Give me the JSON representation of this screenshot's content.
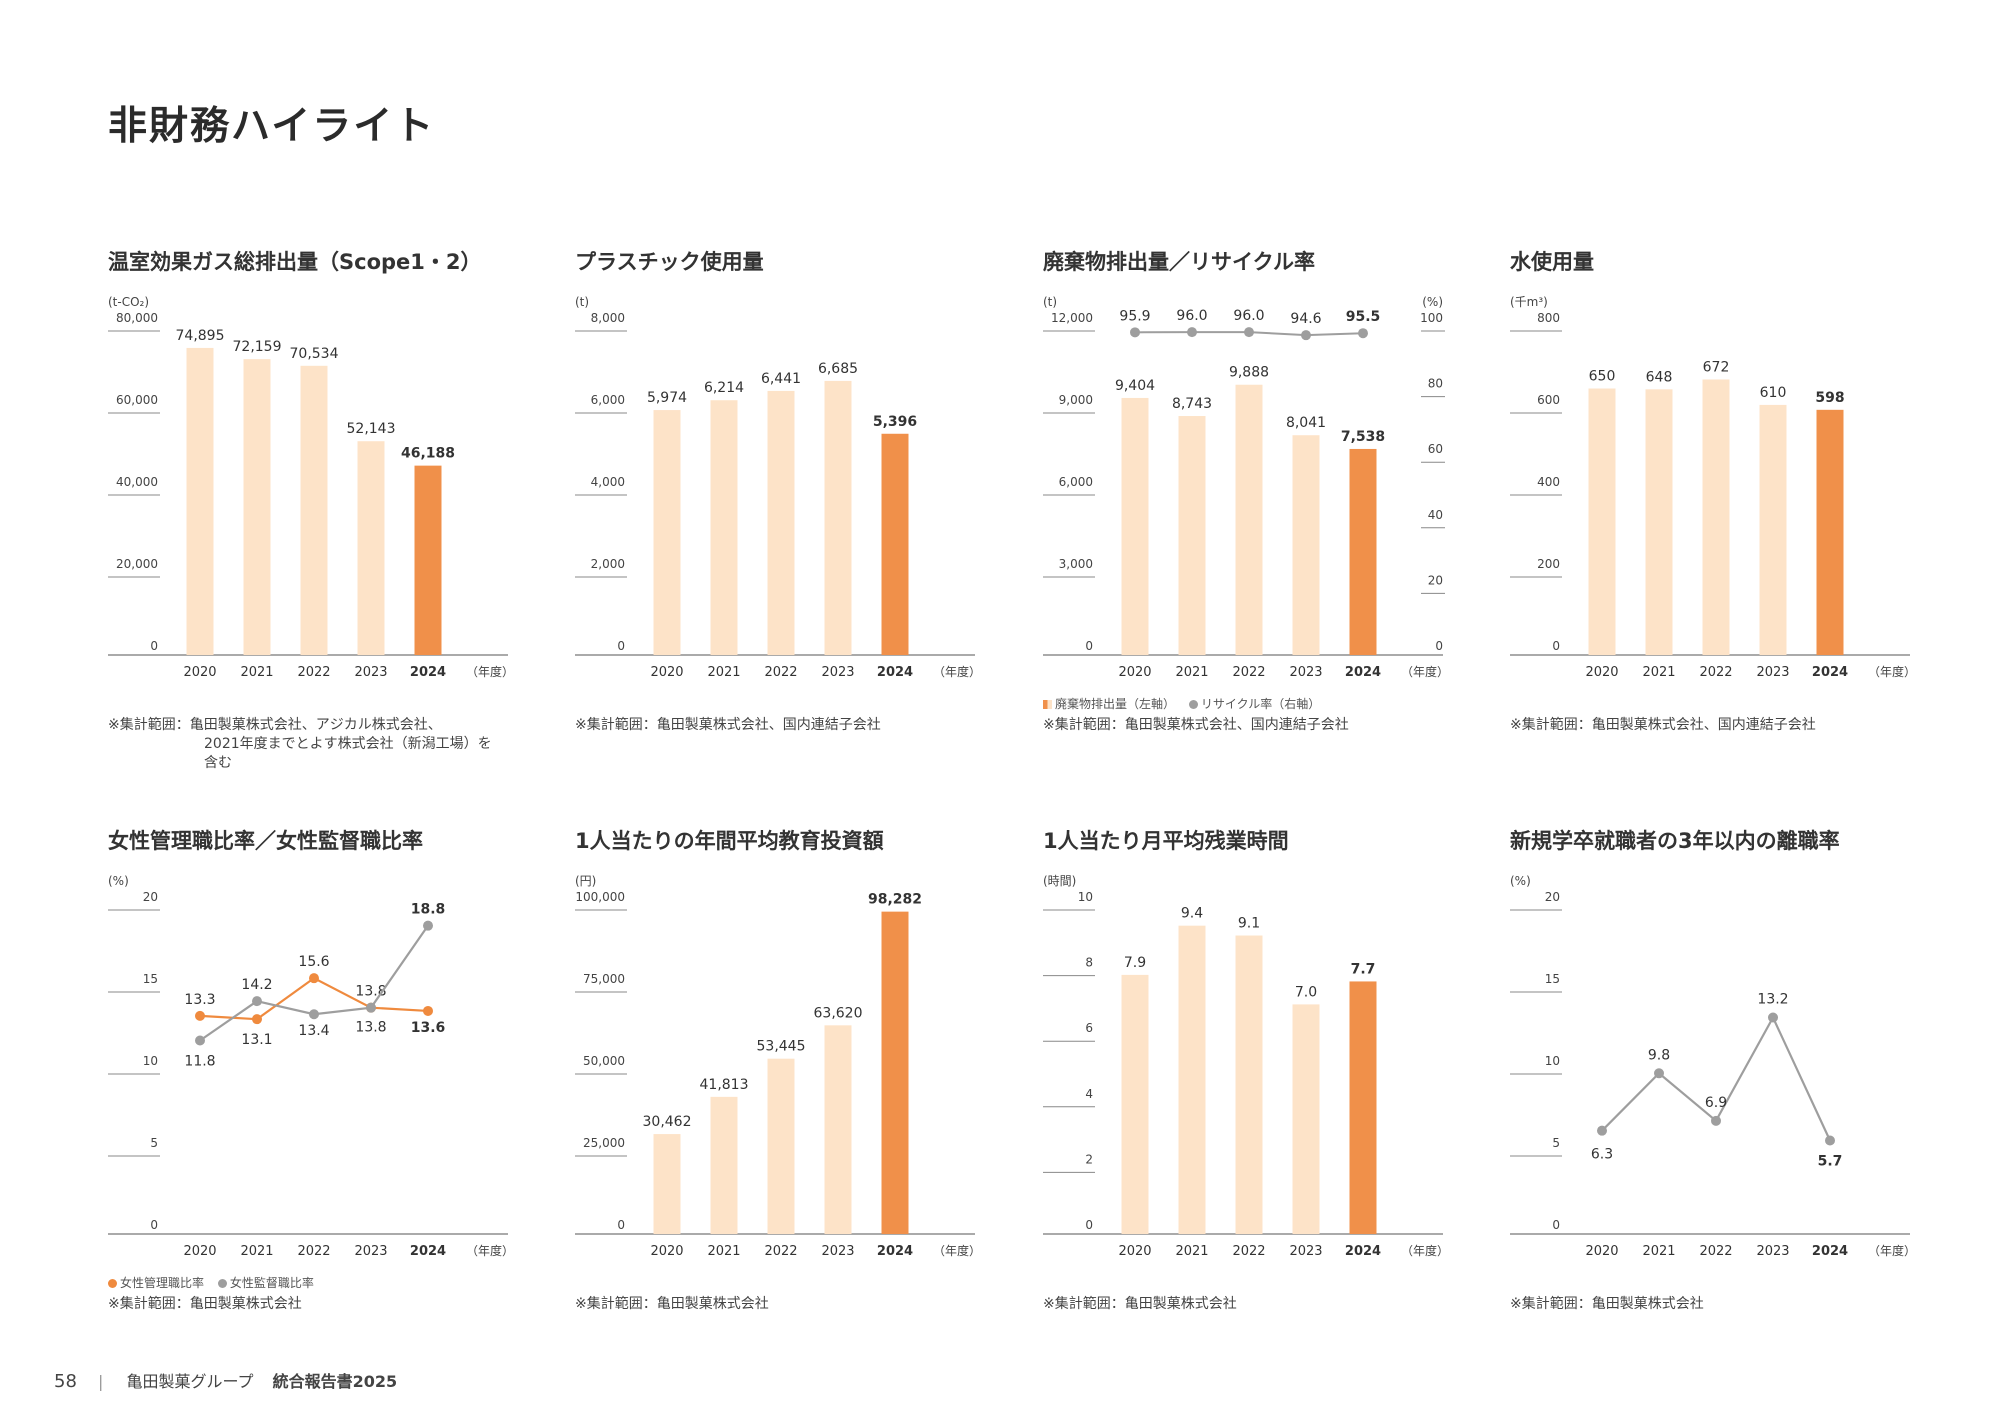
{
  "page": {
    "title": "非財務ハイライト",
    "footer": {
      "page_number": "58",
      "separator": "|",
      "company": "亀田製菓グループ",
      "report": "統合報告書2025"
    }
  },
  "colors": {
    "bar_light": "#fde3c8",
    "bar_highlight": "#f0904a",
    "line_orange": "#ef8a3e",
    "line_gray": "#9e9e9e",
    "axis": "#777777"
  },
  "chart_data": [
    {
      "id": "ghg",
      "type": "bar",
      "title": "温室効果ガス総排出量（Scope1・2）",
      "unit": "(t-CO₂)",
      "categories": [
        "2020",
        "2021",
        "2022",
        "2023",
        "2024"
      ],
      "x_unit": "（年度）",
      "values": [
        74895,
        72159,
        70534,
        52143,
        46188
      ],
      "value_labels": [
        "74,895",
        "72,159",
        "70,534",
        "52,143",
        "46,188"
      ],
      "highlight_index": 4,
      "ylim": [
        0,
        80000
      ],
      "yticks": [
        0,
        20000,
        40000,
        60000,
        80000
      ],
      "ytick_labels": [
        "0",
        "20,000",
        "40,000",
        "60,000",
        "80,000"
      ],
      "note": [
        "※集計範囲：亀田製菓株式会社、アジカル株式会社、",
        "2021年度までとよす株式会社（新潟工場）を",
        "含む"
      ]
    },
    {
      "id": "plastic",
      "type": "bar",
      "title": "プラスチック使用量",
      "unit": "(t)",
      "categories": [
        "2020",
        "2021",
        "2022",
        "2023",
        "2024"
      ],
      "x_unit": "（年度）",
      "values": [
        5974,
        6214,
        6441,
        6685,
        5396
      ],
      "value_labels": [
        "5,974",
        "6,214",
        "6,441",
        "6,685",
        "5,396"
      ],
      "highlight_index": 4,
      "ylim": [
        0,
        8000
      ],
      "yticks": [
        0,
        2000,
        4000,
        6000,
        8000
      ],
      "ytick_labels": [
        "0",
        "2,000",
        "4,000",
        "6,000",
        "8,000"
      ],
      "note": [
        "※集計範囲：亀田製菓株式会社、国内連結子会社"
      ]
    },
    {
      "id": "waste",
      "type": "bar",
      "title": "廃棄物排出量／リサイクル率",
      "unit": "(t)",
      "unit_right": "(%)",
      "categories": [
        "2020",
        "2021",
        "2022",
        "2023",
        "2024"
      ],
      "x_unit": "（年度）",
      "values": [
        9404,
        8743,
        9888,
        8041,
        7538
      ],
      "value_labels": [
        "9,404",
        "8,743",
        "9,888",
        "8,041",
        "7,538"
      ],
      "highlight_index": 4,
      "ylim": [
        0,
        12000
      ],
      "yticks": [
        0,
        3000,
        6000,
        9000,
        12000
      ],
      "ytick_labels": [
        "0",
        "3,000",
        "6,000",
        "9,000",
        "12,000"
      ],
      "right_axis": {
        "ylim": [
          0,
          100
        ],
        "yticks": [
          0,
          20,
          40,
          60,
          80,
          100
        ],
        "ytick_labels": [
          "0",
          "20",
          "40",
          "60",
          "80",
          "100"
        ]
      },
      "line_series": {
        "name": "リサイクル率（右軸）",
        "values": [
          95.9,
          96.0,
          96.0,
          94.6,
          95.5
        ],
        "value_labels": [
          "95.9",
          "96.0",
          "96.0",
          "94.6",
          "95.5"
        ]
      },
      "legend": [
        "廃棄物排出量（左軸）",
        "リサイクル率（右軸）"
      ],
      "note": [
        "※集計範囲：亀田製菓株式会社、国内連結子会社"
      ]
    },
    {
      "id": "water",
      "type": "bar",
      "title": "水使用量",
      "unit": "(千m³)",
      "categories": [
        "2020",
        "2021",
        "2022",
        "2023",
        "2024"
      ],
      "x_unit": "（年度）",
      "values": [
        650,
        648,
        672,
        610,
        598
      ],
      "value_labels": [
        "650",
        "648",
        "672",
        "610",
        "598"
      ],
      "highlight_index": 4,
      "ylim": [
        0,
        800
      ],
      "yticks": [
        0,
        200,
        400,
        600,
        800
      ],
      "ytick_labels": [
        "0",
        "200",
        "400",
        "600",
        "800"
      ],
      "note": [
        "※集計範囲：亀田製菓株式会社、国内連結子会社"
      ]
    },
    {
      "id": "women",
      "type": "line",
      "title": "女性管理職比率／女性監督職比率",
      "unit": "(%)",
      "categories": [
        "2020",
        "2021",
        "2022",
        "2023",
        "2024"
      ],
      "x_unit": "（年度）",
      "ylim": [
        0,
        20
      ],
      "yticks": [
        0,
        5,
        10,
        15,
        20
      ],
      "ytick_labels": [
        "0",
        "5",
        "10",
        "15",
        "20"
      ],
      "series": [
        {
          "name": "女性管理職比率",
          "color": "#ef8a3e",
          "values": [
            13.3,
            13.1,
            15.6,
            13.8,
            13.6
          ],
          "value_labels": [
            "13.3",
            "13.1",
            "15.6",
            "13.8",
            "13.6"
          ]
        },
        {
          "name": "女性監督職比率",
          "color": "#9e9e9e",
          "values": [
            11.8,
            14.2,
            13.4,
            13.8,
            18.8
          ],
          "value_labels": [
            "11.8",
            "14.2",
            "13.4",
            "13.8",
            "18.8"
          ]
        }
      ],
      "legend": [
        "女性管理職比率",
        "女性監督職比率"
      ],
      "note": [
        "※集計範囲：亀田製菓株式会社"
      ]
    },
    {
      "id": "education",
      "type": "bar",
      "title": "1人当たりの年間平均教育投資額",
      "unit": "(円)",
      "categories": [
        "2020",
        "2021",
        "2022",
        "2023",
        "2024"
      ],
      "x_unit": "（年度）",
      "values": [
        30462,
        41813,
        53445,
        63620,
        98282
      ],
      "value_labels": [
        "30,462",
        "41,813",
        "53,445",
        "63,620",
        "98,282"
      ],
      "highlight_index": 4,
      "ylim": [
        0,
        100000
      ],
      "yticks": [
        0,
        25000,
        50000,
        75000,
        100000
      ],
      "ytick_labels": [
        "0",
        "25,000",
        "50,000",
        "75,000",
        "100,000"
      ],
      "note": [
        "※集計範囲：亀田製菓株式会社"
      ]
    },
    {
      "id": "overtime",
      "type": "bar",
      "title": "1人当たり月平均残業時間",
      "unit": "(時間)",
      "categories": [
        "2020",
        "2021",
        "2022",
        "2023",
        "2024"
      ],
      "x_unit": "（年度）",
      "values": [
        7.9,
        9.4,
        9.1,
        7.0,
        7.7
      ],
      "value_labels": [
        "7.9",
        "9.4",
        "9.1",
        "7.0",
        "7.7"
      ],
      "highlight_index": 4,
      "ylim": [
        0,
        10
      ],
      "yticks": [
        0,
        2,
        4,
        6,
        8,
        10
      ],
      "ytick_labels": [
        "0",
        "2",
        "4",
        "6",
        "8",
        "10"
      ],
      "note": [
        "※集計範囲：亀田製菓株式会社"
      ]
    },
    {
      "id": "turnover",
      "type": "line",
      "title": "新規学卒就職者の3年以内の離職率",
      "unit": "(%)",
      "categories": [
        "2020",
        "2021",
        "2022",
        "2023",
        "2024"
      ],
      "x_unit": "（年度）",
      "ylim": [
        0,
        20
      ],
      "yticks": [
        0,
        5,
        10,
        15,
        20
      ],
      "ytick_labels": [
        "0",
        "5",
        "10",
        "15",
        "20"
      ],
      "series": [
        {
          "name": "",
          "color": "#9e9e9e",
          "values": [
            6.3,
            9.8,
            6.9,
            13.2,
            5.7
          ],
          "value_labels": [
            "6.3",
            "9.8",
            "6.9",
            "13.2",
            "5.7"
          ]
        }
      ],
      "note": [
        "※集計範囲：亀田製菓株式会社"
      ]
    }
  ]
}
